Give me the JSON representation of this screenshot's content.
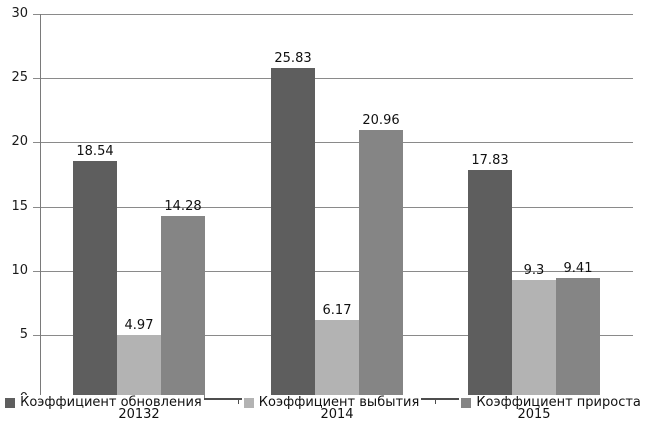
{
  "chart_data": {
    "type": "bar",
    "title": "",
    "xlabel": "",
    "ylabel": "",
    "categories": [
      "20132",
      "2014",
      "2015"
    ],
    "series": [
      {
        "name": "Коэффициент обновления",
        "color": "#5e5e5e",
        "values": [
          18.54,
          25.83,
          17.83
        ],
        "labels": [
          "18.54",
          "25.83",
          "17.83"
        ]
      },
      {
        "name": "Коэффициент выбытия",
        "color": "#b3b3b3",
        "values": [
          4.97,
          6.17,
          9.3
        ],
        "labels": [
          "4.97",
          "6.17",
          "9.3"
        ]
      },
      {
        "name": "Коэффициент прироста",
        "color": "#858585",
        "values": [
          14.28,
          20.96,
          9.41
        ],
        "labels": [
          "14.28",
          "20.96",
          "9.41"
        ]
      }
    ],
    "y_ticks": [
      0,
      5,
      10,
      15,
      20,
      25,
      30
    ],
    "ylim": [
      0,
      30
    ],
    "grid": true,
    "legend_position": "bottom-inline",
    "colors": {
      "background": "#ffffff",
      "gridline": "#8a8a8a",
      "y_axis": "#7a7a7a",
      "x_axis": "#4d4d4d",
      "text": "#111111"
    }
  }
}
